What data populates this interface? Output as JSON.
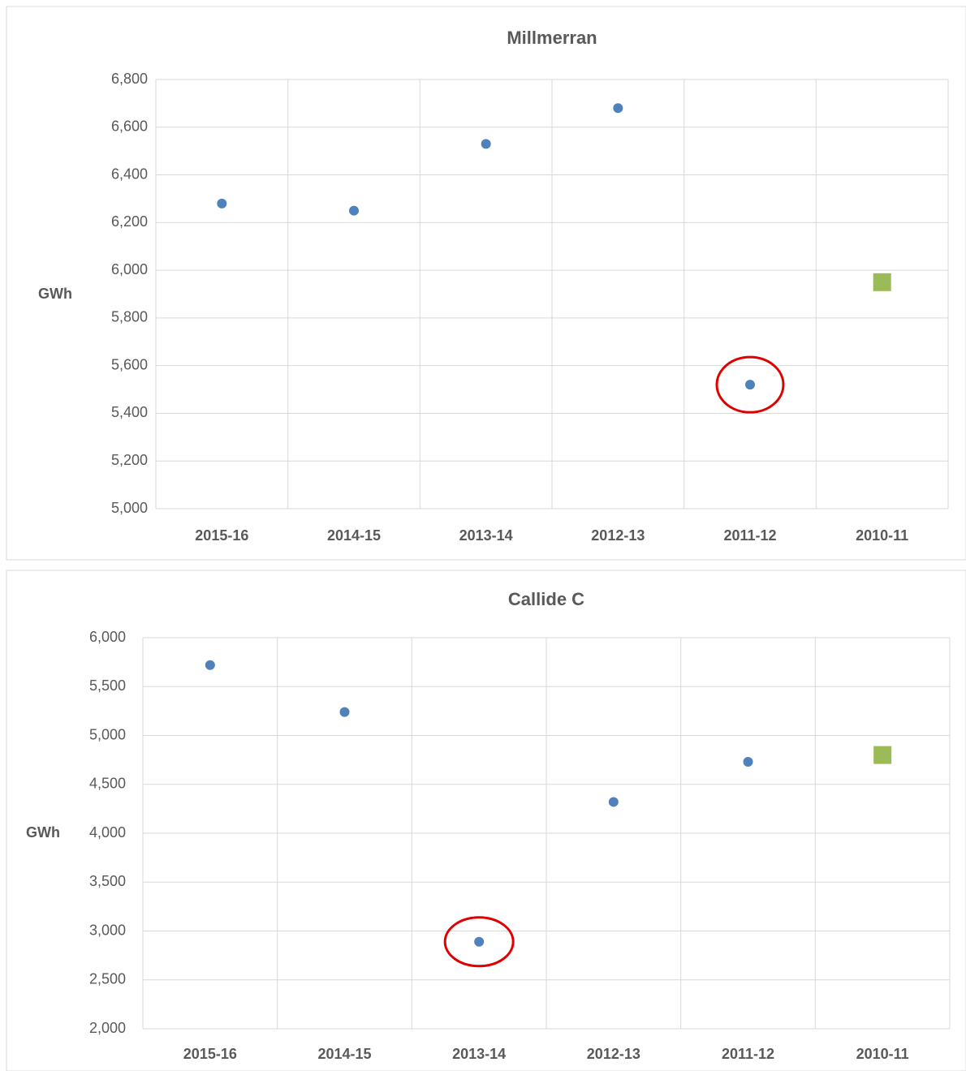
{
  "chart_data": [
    {
      "type": "scatter",
      "title": "Millmerran",
      "ylabel": "GWh",
      "categories": [
        "2015-16",
        "2014-15",
        "2013-14",
        "2012-13",
        "2011-12",
        "2010-11"
      ],
      "values": [
        6280,
        6250,
        6530,
        6680,
        5520,
        5950
      ],
      "colors": [
        "#4f81bd",
        "#4f81bd",
        "#4f81bd",
        "#4f81bd",
        "#4f81bd",
        "#9bbb59"
      ],
      "markers": [
        "circle",
        "circle",
        "circle",
        "circle",
        "circle",
        "square"
      ],
      "highlight_index": 4,
      "ylim": [
        5000,
        6800
      ],
      "yticks": [
        {
          "value": 5000,
          "label": "5,000"
        },
        {
          "value": 5200,
          "label": "5,200"
        },
        {
          "value": 5400,
          "label": "5,400"
        },
        {
          "value": 5600,
          "label": "5,600"
        },
        {
          "value": 5800,
          "label": "5,800"
        },
        {
          "value": 6000,
          "label": "6,000"
        },
        {
          "value": 6200,
          "label": "6,200"
        },
        {
          "value": 6400,
          "label": "6,400"
        },
        {
          "value": 6600,
          "label": "6,600"
        },
        {
          "value": 6800,
          "label": "6,800"
        }
      ],
      "grid": true
    },
    {
      "type": "scatter",
      "title": "Callide C",
      "ylabel": "GWh",
      "categories": [
        "2015-16",
        "2014-15",
        "2013-14",
        "2012-13",
        "2011-12",
        "2010-11"
      ],
      "values": [
        5720,
        5240,
        2890,
        4320,
        4730,
        4800
      ],
      "colors": [
        "#4f81bd",
        "#4f81bd",
        "#4f81bd",
        "#4f81bd",
        "#4f81bd",
        "#9bbb59"
      ],
      "markers": [
        "circle",
        "circle",
        "circle",
        "circle",
        "circle",
        "square"
      ],
      "highlight_index": 2,
      "ylim": [
        2000,
        6000
      ],
      "yticks": [
        {
          "value": 2000,
          "label": "2,000"
        },
        {
          "value": 2500,
          "label": "2,500"
        },
        {
          "value": 3000,
          "label": "3,000"
        },
        {
          "value": 3500,
          "label": "3,500"
        },
        {
          "value": 4000,
          "label": "4,000"
        },
        {
          "value": 4500,
          "label": "4,500"
        },
        {
          "value": 5000,
          "label": "5,000"
        },
        {
          "value": 5500,
          "label": "5,500"
        },
        {
          "value": 6000,
          "label": "6,000"
        }
      ],
      "grid": true
    }
  ]
}
